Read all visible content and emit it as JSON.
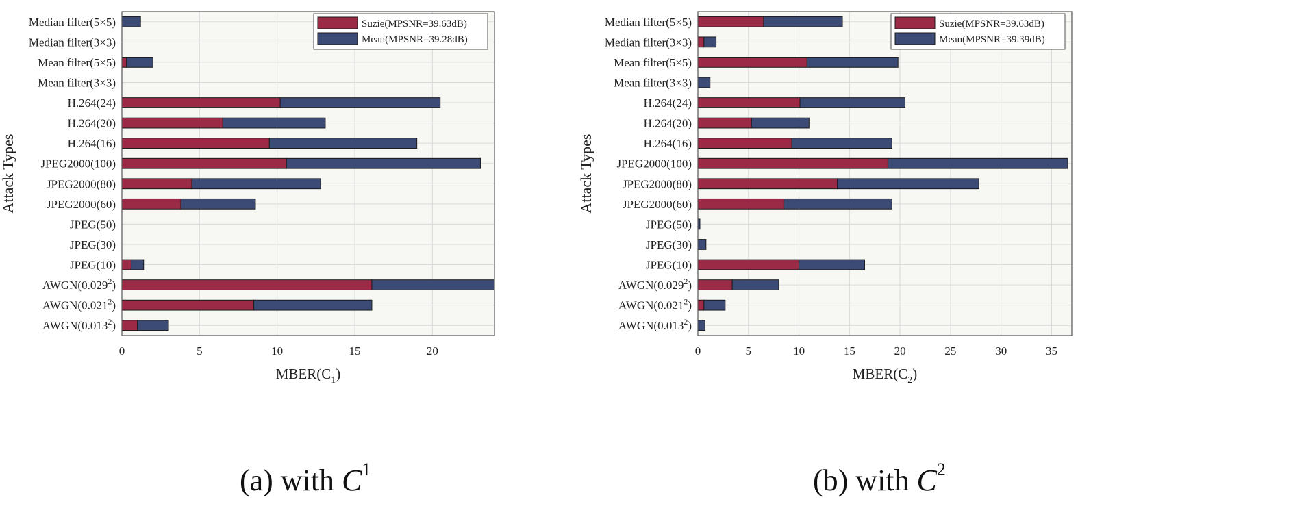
{
  "colors": {
    "suzie": "#9b2a46",
    "mean": "#3c4b75",
    "plot_bg": "#f7f8f4",
    "grid": "#d9d9d9"
  },
  "chart_data": [
    {
      "type": "bar",
      "orientation": "horizontal",
      "stacked": true,
      "ylabel": "Attack Types",
      "xlabel_main": "MBER(C",
      "xlabel_sub": "1",
      "xlabel_close": ")",
      "xlim": [
        0,
        24
      ],
      "xticks": [
        "0",
        "5",
        "10",
        "15",
        "20"
      ],
      "grid": true,
      "legend_position": "top-right",
      "categories": [
        {
          "label": "Median filter(5×5)"
        },
        {
          "label": "Median filter(3×3)"
        },
        {
          "label": "Mean filter(5×5)"
        },
        {
          "label": "Mean filter(3×3)"
        },
        {
          "label": "H.264(24)"
        },
        {
          "label": "H.264(20)"
        },
        {
          "label": "H.264(16)"
        },
        {
          "label": "JPEG2000(100)"
        },
        {
          "label": "JPEG2000(80)"
        },
        {
          "label": "JPEG2000(60)"
        },
        {
          "label": "JPEG(50)"
        },
        {
          "label": "JPEG(30)"
        },
        {
          "label": "JPEG(10)"
        },
        {
          "label": "AWGN(0.029",
          "sup": "2",
          "close": ")"
        },
        {
          "label": "AWGN(0.021",
          "sup": "2",
          "close": ")"
        },
        {
          "label": "AWGN(0.013",
          "sup": "2",
          "close": ")"
        }
      ],
      "series": [
        {
          "name": "Suzie(MPSNR=39.63dB)",
          "values": [
            0,
            0,
            0.3,
            0,
            10.2,
            6.5,
            9.5,
            10.6,
            4.5,
            3.8,
            0,
            0,
            0.6,
            16.1,
            8.5,
            1.0
          ]
        },
        {
          "name": "Mean(MPSNR=39.28dB)",
          "values": [
            1.2,
            0,
            1.7,
            0,
            10.3,
            6.6,
            9.5,
            12.5,
            8.3,
            4.8,
            0,
            0,
            0.8,
            8.0,
            7.6,
            2.0
          ]
        }
      ],
      "caption_prefix": "(a) with ",
      "caption_var": "C",
      "caption_sup": "1"
    },
    {
      "type": "bar",
      "orientation": "horizontal",
      "stacked": true,
      "ylabel": "Attack Types",
      "xlabel_main": "MBER(C",
      "xlabel_sub": "2",
      "xlabel_close": ")",
      "xlim": [
        0,
        37
      ],
      "xticks": [
        "0",
        "5",
        "10",
        "15",
        "20",
        "25",
        "30",
        "35"
      ],
      "grid": true,
      "legend_position": "top-right",
      "categories": [
        {
          "label": "Median filter(5×5)"
        },
        {
          "label": "Median filter(3×3)"
        },
        {
          "label": "Mean filter(5×5)"
        },
        {
          "label": "Mean filter(3×3)"
        },
        {
          "label": "H.264(24)"
        },
        {
          "label": "H.264(20)"
        },
        {
          "label": "H.264(16)"
        },
        {
          "label": "JPEG2000(100)"
        },
        {
          "label": "JPEG2000(80)"
        },
        {
          "label": "JPEG2000(60)"
        },
        {
          "label": "JPEG(50)"
        },
        {
          "label": "JPEG(30)"
        },
        {
          "label": "JPEG(10)"
        },
        {
          "label": "AWGN(0.029",
          "sup": "2",
          "close": ")"
        },
        {
          "label": "AWGN(0.021",
          "sup": "2",
          "close": ")"
        },
        {
          "label": "AWGN(0.013",
          "sup": "2",
          "close": ")"
        }
      ],
      "series": [
        {
          "name": "Suzie(MPSNR=39.63dB)",
          "values": [
            6.5,
            0.6,
            10.8,
            0,
            10.1,
            5.3,
            9.3,
            18.8,
            13.8,
            8.5,
            0,
            0,
            10.0,
            3.4,
            0.6,
            0
          ]
        },
        {
          "name": "Mean(MPSNR=39.39dB)",
          "values": [
            7.8,
            1.2,
            9.0,
            1.2,
            10.4,
            5.7,
            9.9,
            17.8,
            14.0,
            10.7,
            0.2,
            0.8,
            6.5,
            4.6,
            2.1,
            0.7
          ]
        }
      ],
      "caption_prefix": "(b) with ",
      "caption_var": "C",
      "caption_sup": "2"
    }
  ]
}
